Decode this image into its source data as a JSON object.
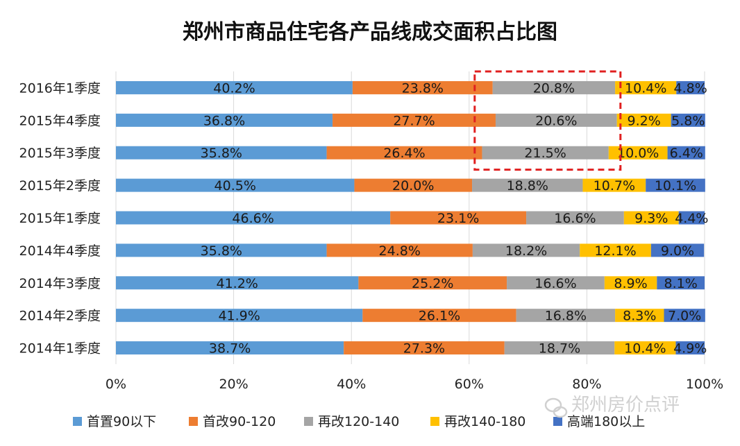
{
  "chart_data": {
    "type": "bar",
    "orientation": "horizontal",
    "stacked": "percent",
    "title": "郑州市商品住宅各产品线成交面积占比图",
    "categories": [
      "2016年1季度",
      "2015年4季度",
      "2015年3季度",
      "2015年2季度",
      "2015年1季度",
      "2014年4季度",
      "2014年3季度",
      "2014年2季度",
      "2014年1季度"
    ],
    "series": [
      {
        "name": "首置90以下",
        "color": "#5b9bd5",
        "values": [
          40.2,
          36.8,
          35.8,
          40.5,
          46.6,
          35.8,
          41.2,
          41.9,
          38.7
        ]
      },
      {
        "name": "首改90-120",
        "color": "#ed7d31",
        "values": [
          23.8,
          27.7,
          26.4,
          20.0,
          23.1,
          24.8,
          25.2,
          26.1,
          27.3
        ]
      },
      {
        "name": "再改120-140",
        "color": "#a5a5a5",
        "values": [
          20.8,
          20.6,
          21.5,
          18.8,
          16.6,
          18.2,
          16.6,
          16.8,
          18.7
        ]
      },
      {
        "name": "再改140-180",
        "color": "#ffc000",
        "values": [
          10.4,
          9.2,
          10.0,
          10.7,
          9.3,
          12.1,
          8.9,
          8.3,
          10.4
        ]
      },
      {
        "name": "高端180以上",
        "color": "#4472c4",
        "values": [
          4.8,
          5.8,
          6.4,
          10.1,
          4.4,
          9.0,
          8.1,
          7.0,
          4.9
        ]
      }
    ],
    "data_labels": [
      [
        "40.2%",
        "23.8%",
        "20.8%",
        "10.4%",
        "4.8%"
      ],
      [
        "36.8%",
        "27.7%",
        "20.6%",
        "9.2%",
        "5.8%"
      ],
      [
        "35.8%",
        "26.4%",
        "21.5%",
        "10.0%",
        "6.4%"
      ],
      [
        "40.5%",
        "20.0%",
        "18.8%",
        "10.7%",
        "10.1%"
      ],
      [
        "46.6%",
        "23.1%",
        "16.6%",
        "9.3%",
        "4.4%"
      ],
      [
        "35.8%",
        "24.8%",
        "18.2%",
        "12.1%",
        "9.0%"
      ],
      [
        "41.2%",
        "25.2%",
        "16.6%",
        "8.9%",
        "8.1%"
      ],
      [
        "41.9%",
        "26.1%",
        "16.8%",
        "8.3%",
        "7.0%"
      ],
      [
        "38.7%",
        "27.3%",
        "18.7%",
        "10.4%",
        "4.9%"
      ]
    ],
    "x_ticks": [
      "0%",
      "20%",
      "40%",
      "60%",
      "80%",
      "100%"
    ],
    "xlim": [
      0,
      100
    ],
    "grid": true,
    "legend_position": "bottom",
    "highlight": {
      "style": "dashed-red-box",
      "color": "#e02020",
      "x_range": [
        60,
        85
      ],
      "categories": [
        "2016年1季度",
        "2015年4季度",
        "2015年3季度"
      ]
    },
    "watermark": "郑州房价点评"
  }
}
